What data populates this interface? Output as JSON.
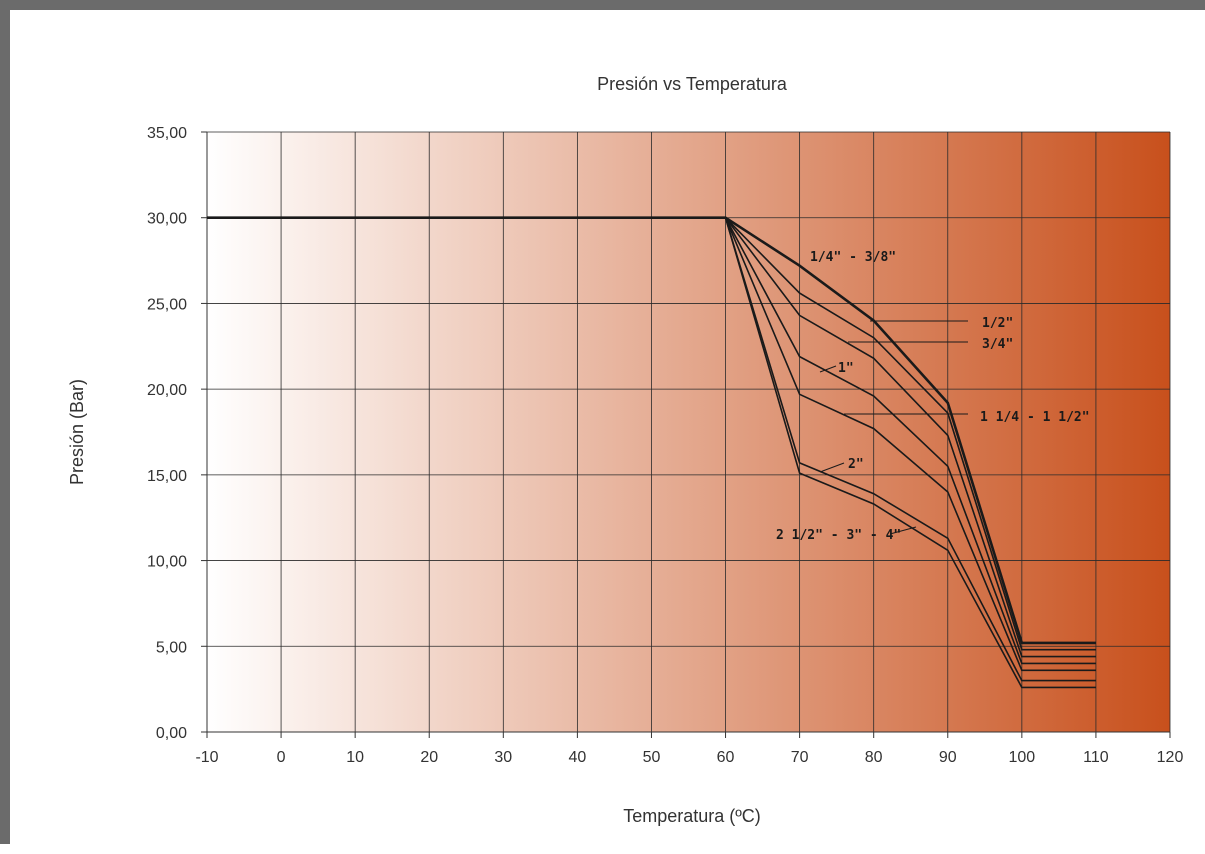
{
  "chart_data": {
    "type": "line",
    "title": "Presión vs Temperatura",
    "xlabel": "Temperatura (ºC)",
    "ylabel": "Presión (Bar)",
    "xlim": [
      -10,
      120
    ],
    "ylim": [
      0,
      35
    ],
    "x_ticks": [
      "-10",
      "0",
      "10",
      "20",
      "30",
      "40",
      "50",
      "60",
      "70",
      "80",
      "90",
      "100",
      "110",
      "120"
    ],
    "y_ticks": [
      "0,00",
      "5,00",
      "10,00",
      "15,00",
      "20,00",
      "25,00",
      "30,00",
      "35,00"
    ],
    "grid": true,
    "legend": "none",
    "background_gradient": {
      "from": "#ffffff",
      "to": "#c8501c"
    },
    "line_color": "#1a1a1a",
    "series": [
      {
        "name": "1/4\" - 3/8\"",
        "x": [
          -10,
          60,
          70,
          80,
          90,
          100,
          110
        ],
        "y": [
          30,
          30,
          27.2,
          24.0,
          19.2,
          5.2,
          5.2
        ]
      },
      {
        "name": "1/2\"",
        "x": [
          -10,
          60,
          70,
          80,
          90,
          100,
          110
        ],
        "y": [
          30,
          30,
          25.6,
          23.0,
          18.6,
          4.8,
          4.8
        ]
      },
      {
        "name": "3/4\"",
        "x": [
          -10,
          60,
          70,
          80,
          90,
          100,
          110
        ],
        "y": [
          30,
          30,
          24.3,
          21.8,
          17.3,
          4.4,
          4.4
        ]
      },
      {
        "name": "1\"",
        "x": [
          -10,
          60,
          70,
          80,
          90,
          100,
          110
        ],
        "y": [
          30,
          30,
          21.9,
          19.6,
          15.5,
          4.0,
          4.0
        ]
      },
      {
        "name": "1 1/4 - 1 1/2\"",
        "x": [
          -10,
          60,
          70,
          80,
          90,
          100,
          110
        ],
        "y": [
          30,
          30,
          19.7,
          17.7,
          14.0,
          3.6,
          3.6
        ]
      },
      {
        "name": "2\"",
        "x": [
          -10,
          60,
          70,
          80,
          90,
          100,
          110
        ],
        "y": [
          30,
          30,
          15.7,
          13.9,
          11.3,
          3.0,
          3.0
        ]
      },
      {
        "name": "2 1/2\" - 3\" - 4\"",
        "x": [
          -10,
          60,
          70,
          80,
          90,
          100,
          110
        ],
        "y": [
          30,
          30,
          15.1,
          13.3,
          10.6,
          2.6,
          2.6
        ]
      }
    ]
  }
}
